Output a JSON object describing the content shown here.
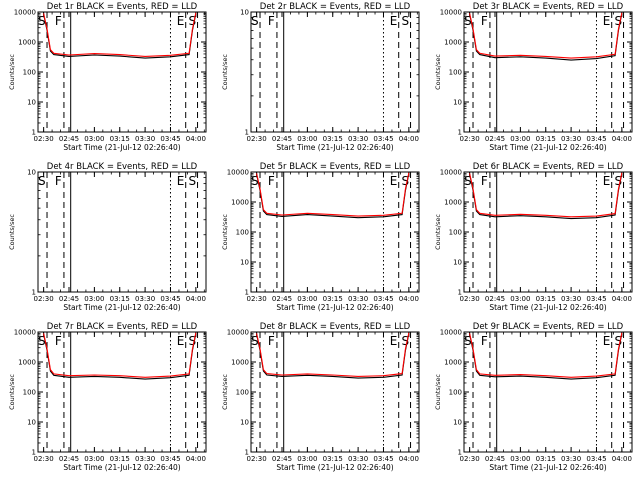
{
  "chart_data": [
    {
      "type": "line",
      "title": "Det 1r BLACK = Events, RED = LLD",
      "xlabel": "Start Time (21-Jul-12 02:26:40)",
      "ylabel": "Counts/sec",
      "y_scale": "log",
      "ylim": [
        1,
        10000
      ],
      "x_tick_labels": [
        "02:30",
        "02:45",
        "03:00",
        "03:15",
        "03:30",
        "03:45",
        "04:00"
      ],
      "y_tick_labels": [
        "1",
        "10",
        "100",
        "1000",
        "10000"
      ],
      "has_data": true,
      "markers": [
        {
          "t": "02:32",
          "label": "S",
          "style": "dashed"
        },
        {
          "t": "02:42",
          "label": "F",
          "style": "dashed"
        },
        {
          "t": "02:46",
          "label": "",
          "style": "solid"
        },
        {
          "t": "03:45",
          "label": "",
          "style": "dotted"
        },
        {
          "t": "03:54",
          "label": "E",
          "style": "dashed"
        },
        {
          "t": "04:01",
          "label": "S",
          "style": "dashed"
        }
      ],
      "series": [
        {
          "color": "#000000",
          "x": [
            "02:30",
            "02:32",
            "02:34",
            "02:36",
            "02:45",
            "03:00",
            "03:15",
            "03:30",
            "03:45",
            "03:56",
            "03:58",
            "04:00"
          ],
          "y": [
            8500,
            2500,
            500,
            380,
            330,
            370,
            340,
            290,
            320,
            380,
            2500,
            9000
          ]
        },
        {
          "color": "#ff0000",
          "x": [
            "02:30",
            "02:32",
            "02:34",
            "02:36",
            "02:45",
            "03:00",
            "03:15",
            "03:30",
            "03:45",
            "03:56",
            "03:58",
            "04:00"
          ],
          "y": [
            9000,
            2800,
            560,
            420,
            370,
            410,
            380,
            330,
            360,
            420,
            2800,
            9500
          ]
        }
      ]
    },
    {
      "type": "line",
      "title": "Det 2r BLACK = Events, RED = LLD",
      "xlabel": "Start Time (21-Jul-12 02:26:40)",
      "ylabel": "Counts/sec",
      "y_scale": "log",
      "ylim": [
        1,
        10
      ],
      "x_tick_labels": [
        "02:30",
        "02:45",
        "03:00",
        "03:15",
        "03:30",
        "03:45",
        "04:00"
      ],
      "y_tick_labels": [
        "1",
        "10"
      ],
      "has_data": false,
      "markers": [
        {
          "t": "02:32",
          "label": "S",
          "style": "dashed"
        },
        {
          "t": "02:42",
          "label": "F",
          "style": "dashed"
        },
        {
          "t": "02:46",
          "label": "",
          "style": "solid"
        },
        {
          "t": "03:45",
          "label": "",
          "style": "dotted"
        },
        {
          "t": "03:54",
          "label": "E",
          "style": "dashed"
        },
        {
          "t": "04:01",
          "label": "S",
          "style": "dashed"
        }
      ],
      "series": []
    },
    {
      "type": "line",
      "title": "Det 3r BLACK = Events, RED = LLD",
      "xlabel": "Start Time (21-Jul-12 02:26:40)",
      "ylabel": "Counts/sec",
      "y_scale": "log",
      "ylim": [
        1,
        10000
      ],
      "x_tick_labels": [
        "02:30",
        "02:45",
        "03:00",
        "03:15",
        "03:30",
        "03:45",
        "04:00"
      ],
      "y_tick_labels": [
        "1",
        "10",
        "100",
        "1000",
        "10000"
      ],
      "has_data": true,
      "markers": [
        {
          "t": "02:32",
          "label": "S",
          "style": "dashed"
        },
        {
          "t": "02:42",
          "label": "F",
          "style": "dashed"
        },
        {
          "t": "02:46",
          "label": "",
          "style": "solid"
        },
        {
          "t": "03:45",
          "label": "",
          "style": "dotted"
        },
        {
          "t": "03:54",
          "label": "E",
          "style": "dashed"
        },
        {
          "t": "04:01",
          "label": "S",
          "style": "dashed"
        }
      ],
      "series": [
        {
          "color": "#000000",
          "x": [
            "02:30",
            "02:32",
            "02:34",
            "02:36",
            "02:45",
            "03:00",
            "03:15",
            "03:30",
            "03:45",
            "03:56",
            "03:58",
            "04:00"
          ],
          "y": [
            8500,
            2500,
            500,
            380,
            300,
            320,
            290,
            250,
            280,
            350,
            2500,
            9000
          ]
        },
        {
          "color": "#ff0000",
          "x": [
            "02:30",
            "02:32",
            "02:34",
            "02:36",
            "02:45",
            "03:00",
            "03:15",
            "03:30",
            "03:45",
            "03:56",
            "03:58",
            "04:00"
          ],
          "y": [
            9000,
            2800,
            560,
            420,
            340,
            360,
            330,
            290,
            320,
            390,
            2800,
            9500
          ]
        }
      ]
    },
    {
      "type": "line",
      "title": "Det 4r BLACK = Events, RED = LLD",
      "xlabel": "Start Time (21-Jul-12 02:26:40)",
      "ylabel": "Counts/sec",
      "y_scale": "log",
      "ylim": [
        1,
        10
      ],
      "x_tick_labels": [
        "02:30",
        "02:45",
        "03:00",
        "03:15",
        "03:30",
        "03:45",
        "04:00"
      ],
      "y_tick_labels": [
        "1",
        "10"
      ],
      "has_data": false,
      "markers": [
        {
          "t": "02:32",
          "label": "S",
          "style": "dashed"
        },
        {
          "t": "02:42",
          "label": "F",
          "style": "dashed"
        },
        {
          "t": "02:46",
          "label": "",
          "style": "solid"
        },
        {
          "t": "03:45",
          "label": "",
          "style": "dotted"
        },
        {
          "t": "03:54",
          "label": "E",
          "style": "dashed"
        },
        {
          "t": "04:01",
          "label": "S",
          "style": "dashed"
        }
      ],
      "series": []
    },
    {
      "type": "line",
      "title": "Det 5r BLACK = Events, RED = LLD",
      "xlabel": "Start Time (21-Jul-12 02:26:40)",
      "ylabel": "Counts/sec",
      "y_scale": "log",
      "ylim": [
        1,
        10000
      ],
      "x_tick_labels": [
        "02:30",
        "02:45",
        "03:00",
        "03:15",
        "03:30",
        "03:45",
        "04:00"
      ],
      "y_tick_labels": [
        "1",
        "10",
        "100",
        "1000",
        "10000"
      ],
      "has_data": true,
      "markers": [
        {
          "t": "02:32",
          "label": "S",
          "style": "dashed"
        },
        {
          "t": "02:42",
          "label": "F",
          "style": "dashed"
        },
        {
          "t": "02:46",
          "label": "",
          "style": "solid"
        },
        {
          "t": "03:45",
          "label": "",
          "style": "dotted"
        },
        {
          "t": "03:54",
          "label": "E",
          "style": "dashed"
        },
        {
          "t": "04:01",
          "label": "S",
          "style": "dashed"
        }
      ],
      "series": [
        {
          "color": "#000000",
          "x": [
            "02:30",
            "02:32",
            "02:34",
            "02:36",
            "02:45",
            "03:00",
            "03:15",
            "03:30",
            "03:45",
            "03:56",
            "03:58",
            "04:00"
          ],
          "y": [
            8500,
            2500,
            500,
            380,
            330,
            380,
            340,
            300,
            320,
            380,
            2500,
            9000
          ]
        },
        {
          "color": "#ff0000",
          "x": [
            "02:30",
            "02:32",
            "02:34",
            "02:36",
            "02:45",
            "03:00",
            "03:15",
            "03:30",
            "03:45",
            "03:56",
            "03:58",
            "04:00"
          ],
          "y": [
            9000,
            2800,
            560,
            420,
            370,
            420,
            380,
            340,
            360,
            420,
            2800,
            9500
          ]
        }
      ]
    },
    {
      "type": "line",
      "title": "Det 6r BLACK = Events, RED = LLD",
      "xlabel": "Start Time (21-Jul-12 02:26:40)",
      "ylabel": "Counts/sec",
      "y_scale": "log",
      "ylim": [
        1,
        10000
      ],
      "x_tick_labels": [
        "02:30",
        "02:45",
        "03:00",
        "03:15",
        "03:30",
        "03:45",
        "04:00"
      ],
      "y_tick_labels": [
        "1",
        "10",
        "100",
        "1000",
        "10000"
      ],
      "has_data": true,
      "markers": [
        {
          "t": "02:32",
          "label": "S",
          "style": "dashed"
        },
        {
          "t": "02:42",
          "label": "F",
          "style": "dashed"
        },
        {
          "t": "02:46",
          "label": "",
          "style": "solid"
        },
        {
          "t": "03:45",
          "label": "",
          "style": "dotted"
        },
        {
          "t": "03:54",
          "label": "E",
          "style": "dashed"
        },
        {
          "t": "04:01",
          "label": "S",
          "style": "dashed"
        }
      ],
      "series": [
        {
          "color": "#000000",
          "x": [
            "02:30",
            "02:32",
            "02:34",
            "02:36",
            "02:45",
            "03:00",
            "03:15",
            "03:30",
            "03:45",
            "03:56",
            "03:58",
            "04:00"
          ],
          "y": [
            8500,
            2500,
            500,
            380,
            320,
            350,
            320,
            280,
            300,
            370,
            2500,
            9000
          ]
        },
        {
          "color": "#ff0000",
          "x": [
            "02:30",
            "02:32",
            "02:34",
            "02:36",
            "02:45",
            "03:00",
            "03:15",
            "03:30",
            "03:45",
            "03:56",
            "03:58",
            "04:00"
          ],
          "y": [
            9000,
            2800,
            560,
            420,
            360,
            390,
            360,
            320,
            340,
            410,
            2800,
            9500
          ]
        }
      ]
    },
    {
      "type": "line",
      "title": "Det 7r BLACK = Events, RED = LLD",
      "xlabel": "Start Time (21-Jul-12 02:26:40)",
      "ylabel": "Counts/sec",
      "y_scale": "log",
      "ylim": [
        1,
        10000
      ],
      "x_tick_labels": [
        "02:30",
        "02:45",
        "03:00",
        "03:15",
        "03:30",
        "03:45",
        "04:00"
      ],
      "y_tick_labels": [
        "1",
        "10",
        "100",
        "1000",
        "10000"
      ],
      "has_data": true,
      "markers": [
        {
          "t": "02:32",
          "label": "S",
          "style": "dashed"
        },
        {
          "t": "02:42",
          "label": "F",
          "style": "dashed"
        },
        {
          "t": "02:46",
          "label": "",
          "style": "solid"
        },
        {
          "t": "03:45",
          "label": "",
          "style": "dotted"
        },
        {
          "t": "03:54",
          "label": "E",
          "style": "dashed"
        },
        {
          "t": "04:01",
          "label": "S",
          "style": "dashed"
        }
      ],
      "series": [
        {
          "color": "#000000",
          "x": [
            "02:30",
            "02:32",
            "02:34",
            "02:36",
            "02:45",
            "03:00",
            "03:15",
            "03:30",
            "03:45",
            "03:56",
            "03:58",
            "04:00"
          ],
          "y": [
            8500,
            2500,
            500,
            360,
            310,
            330,
            310,
            270,
            300,
            360,
            2500,
            9000
          ]
        },
        {
          "color": "#ff0000",
          "x": [
            "02:30",
            "02:32",
            "02:34",
            "02:36",
            "02:45",
            "03:00",
            "03:15",
            "03:30",
            "03:45",
            "03:56",
            "03:58",
            "04:00"
          ],
          "y": [
            9000,
            2800,
            560,
            400,
            350,
            370,
            350,
            310,
            340,
            400,
            2800,
            9500
          ]
        }
      ]
    },
    {
      "type": "line",
      "title": "Det 8r BLACK = Events, RED = LLD",
      "xlabel": "Start Time (21-Jul-12 02:26:40)",
      "ylabel": "Counts/sec",
      "y_scale": "log",
      "ylim": [
        1,
        10000
      ],
      "x_tick_labels": [
        "02:30",
        "02:45",
        "03:00",
        "03:15",
        "03:30",
        "03:45",
        "04:00"
      ],
      "y_tick_labels": [
        "1",
        "10",
        "100",
        "1000",
        "10000"
      ],
      "has_data": true,
      "markers": [
        {
          "t": "02:32",
          "label": "S",
          "style": "dashed"
        },
        {
          "t": "02:42",
          "label": "F",
          "style": "dashed"
        },
        {
          "t": "02:46",
          "label": "",
          "style": "solid"
        },
        {
          "t": "03:45",
          "label": "",
          "style": "dotted"
        },
        {
          "t": "03:54",
          "label": "E",
          "style": "dashed"
        },
        {
          "t": "04:01",
          "label": "S",
          "style": "dashed"
        }
      ],
      "series": [
        {
          "color": "#000000",
          "x": [
            "02:30",
            "02:32",
            "02:34",
            "02:36",
            "02:45",
            "03:00",
            "03:15",
            "03:30",
            "03:45",
            "03:56",
            "03:58",
            "04:00"
          ],
          "y": [
            8500,
            2500,
            500,
            370,
            330,
            360,
            330,
            290,
            310,
            370,
            2500,
            9000
          ]
        },
        {
          "color": "#ff0000",
          "x": [
            "02:30",
            "02:32",
            "02:34",
            "02:36",
            "02:45",
            "03:00",
            "03:15",
            "03:30",
            "03:45",
            "03:56",
            "03:58",
            "04:00"
          ],
          "y": [
            9000,
            2800,
            560,
            410,
            370,
            400,
            370,
            330,
            350,
            410,
            2800,
            9500
          ]
        }
      ]
    },
    {
      "type": "line",
      "title": "Det 9r BLACK = Events, RED = LLD",
      "xlabel": "Start Time (21-Jul-12 02:26:40)",
      "ylabel": "Counts/sec",
      "y_scale": "log",
      "ylim": [
        1,
        10000
      ],
      "x_tick_labels": [
        "02:30",
        "02:45",
        "03:00",
        "03:15",
        "03:30",
        "03:45",
        "04:00"
      ],
      "y_tick_labels": [
        "1",
        "10",
        "100",
        "1000",
        "10000"
      ],
      "has_data": true,
      "markers": [
        {
          "t": "02:32",
          "label": "S",
          "style": "dashed"
        },
        {
          "t": "02:42",
          "label": "F",
          "style": "dashed"
        },
        {
          "t": "02:46",
          "label": "",
          "style": "solid"
        },
        {
          "t": "03:45",
          "label": "",
          "style": "dotted"
        },
        {
          "t": "03:54",
          "label": "E",
          "style": "dashed"
        },
        {
          "t": "04:01",
          "label": "S",
          "style": "dashed"
        }
      ],
      "series": [
        {
          "color": "#000000",
          "x": [
            "02:30",
            "02:32",
            "02:34",
            "02:36",
            "02:45",
            "03:00",
            "03:15",
            "03:30",
            "03:45",
            "03:56",
            "03:58",
            "04:00"
          ],
          "y": [
            8500,
            2500,
            500,
            360,
            320,
            340,
            310,
            270,
            300,
            360,
            2500,
            9000
          ]
        },
        {
          "color": "#ff0000",
          "x": [
            "02:30",
            "02:32",
            "02:34",
            "02:36",
            "02:45",
            "03:00",
            "03:15",
            "03:30",
            "03:45",
            "03:56",
            "03:58",
            "04:00"
          ],
          "y": [
            9000,
            2800,
            560,
            400,
            360,
            380,
            350,
            310,
            340,
            400,
            2800,
            9500
          ]
        }
      ]
    }
  ]
}
